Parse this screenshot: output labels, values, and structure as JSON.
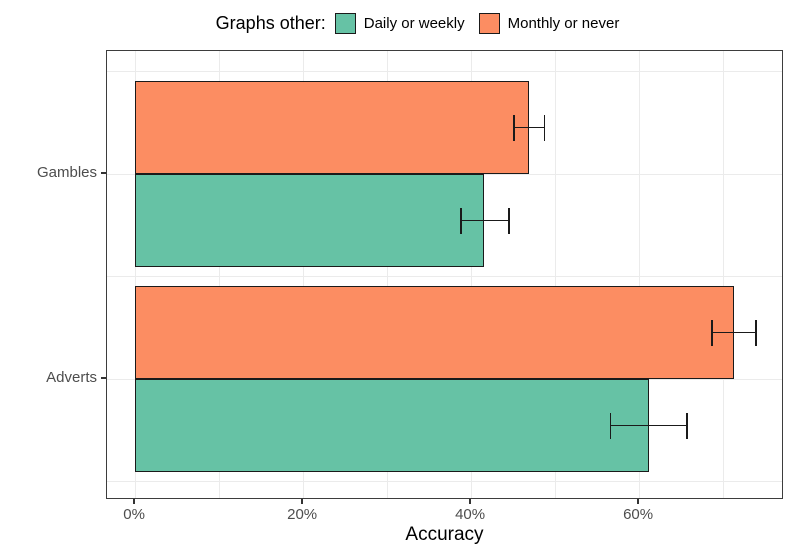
{
  "chart_data": {
    "type": "bar",
    "orientation": "horizontal",
    "legend_title": "Graphs other:",
    "legend_position": "top",
    "xlabel": "Accuracy",
    "ylabel": "",
    "categories": [
      "Gambles",
      "Adverts"
    ],
    "series": [
      {
        "name": "Daily or weekly",
        "color": "#66C2A5",
        "values": [
          41.5,
          61.2
        ],
        "error_low": [
          38.7,
          56.5
        ],
        "error_high": [
          44.6,
          65.8
        ]
      },
      {
        "name": "Monthly or never",
        "color": "#FC8D62",
        "values": [
          46.9,
          71.3
        ],
        "error_low": [
          45.0,
          68.6
        ],
        "error_high": [
          48.8,
          74.0
        ]
      }
    ],
    "xlim": [
      -3.35,
      77.25
    ],
    "xticks": [
      0,
      20,
      40,
      60
    ],
    "xtick_labels": [
      "0%",
      "20%",
      "40%",
      "60%"
    ],
    "minor_xticks": [
      10,
      30,
      50,
      70
    ],
    "grid": true,
    "bar_outline_color": "#1a1a1a",
    "errorbar_color": "#1a1a1a",
    "panel_border_color": "#3d3d3d",
    "gridline_color": "#ebebeb",
    "tick_label_color": "#4d4d4d"
  }
}
